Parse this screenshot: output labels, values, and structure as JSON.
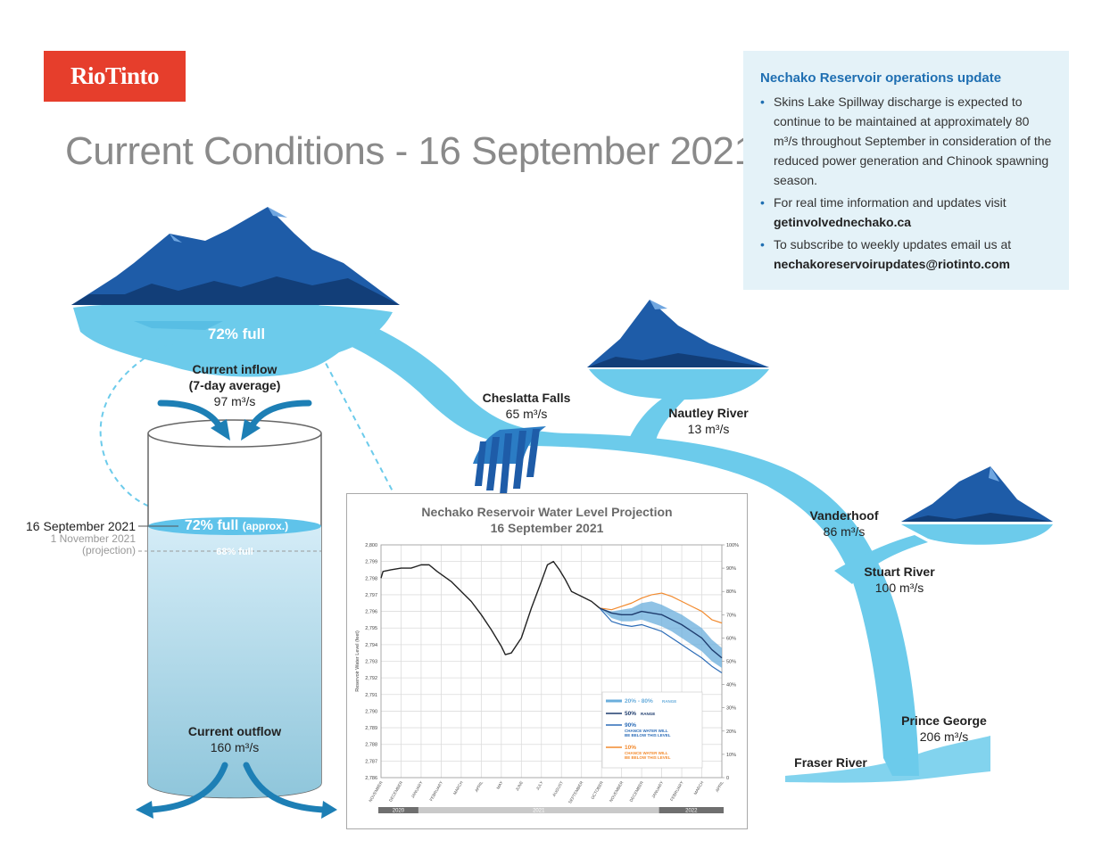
{
  "logo": "RioTinto",
  "title": "Current Conditions - 16 September 2021",
  "info": {
    "heading": "Nechako Reservoir operations update",
    "b1": "Skins Lake Spillway discharge is expected to continue to be maintained at approximately 80 m³/s throughout September in consideration of the reduced power generation and Chinook spawning season.",
    "b2_text": "For real time information and updates visit",
    "b2_link": "getinvolvednechako.ca",
    "b3_text": "To subscribe to weekly updates email us at",
    "b3_link": "nechakoreservoirupdates@riotinto.com"
  },
  "reservoir": {
    "pct": "72% full",
    "inflow_label": "Current inflow",
    "inflow_avg": "(7-day average)",
    "inflow_val": "97 m³/s",
    "outflow_label": "Current outflow",
    "outflow_val": "160 m³/s",
    "level_pct": "72% full",
    "level_approx": "(approx.)",
    "proj_pct": "68% full",
    "date": "16 September 2021",
    "proj_date": "1 November 2021",
    "proj_note": "(projection)"
  },
  "rivers": {
    "cheslatta_name": "Cheslatta Falls",
    "cheslatta_val": "65 m³/s",
    "nautley_name": "Nautley River",
    "nautley_val": "13 m³/s",
    "vanderhoof_name": "Vanderhoof",
    "vanderhoof_val": "86 m³/s",
    "stuart_name": "Stuart River",
    "stuart_val": "100 m³/s",
    "pg_name": "Prince George",
    "pg_val": "206 m³/s",
    "fraser_name": "Fraser River"
  },
  "colors": {
    "brand_red": "#e63e2c",
    "river": "#6ccbeb",
    "mountain": "#1e5ca8",
    "mountain_dark": "#123e78",
    "line_50": "#1f3d6e",
    "line_90": "#2d6db8",
    "line_10": "#f28a2e",
    "band": "#6aaedc"
  },
  "chart_data": {
    "type": "line",
    "title": "Nechako Reservoir Water Level Projection",
    "subtitle": "16 September 2021",
    "ylabel": "Reservoir Water Level (feet)",
    "ylim": [
      2786,
      2800
    ],
    "yticks": [
      "2,800",
      "2,799",
      "2,798",
      "2,797",
      "2,796",
      "2,795",
      "2,794",
      "2,793",
      "2,792",
      "2,791",
      "2,790",
      "2,789",
      "2,788",
      "2,787",
      "2,786"
    ],
    "y2ticks": [
      "100%",
      "90%",
      "80%",
      "70%",
      "60%",
      "50%",
      "40%",
      "30%",
      "20%",
      "10%",
      "0"
    ],
    "months": [
      "NOVEMBER",
      "DECEMBER",
      "JANUARY",
      "FEBRUARY",
      "MARCH",
      "APRIL",
      "MAY",
      "JUNE",
      "JULY",
      "AUGUST",
      "SEPTEMBER",
      "OCTOBER",
      "NOVEMBER",
      "DECEMBER",
      "JANUARY",
      "FEBRUARY",
      "MARCH",
      "APRIL"
    ],
    "years": [
      {
        "label": "2020",
        "from": 0,
        "to": 2
      },
      {
        "label": "2021",
        "from": 2,
        "to": 14
      },
      {
        "label": "2022",
        "from": 14,
        "to": 18
      }
    ],
    "historical": [
      [
        0,
        2798.0
      ],
      [
        0.1,
        2798.4
      ],
      [
        0.5,
        2798.5
      ],
      [
        1,
        2798.6
      ],
      [
        1.5,
        2798.6
      ],
      [
        2,
        2798.8
      ],
      [
        2.4,
        2798.8
      ],
      [
        2.8,
        2798.4
      ],
      [
        3.5,
        2797.8
      ],
      [
        4.5,
        2796.6
      ],
      [
        5,
        2795.8
      ],
      [
        5.5,
        2794.9
      ],
      [
        6,
        2793.9
      ],
      [
        6.2,
        2793.4
      ],
      [
        6.5,
        2793.5
      ],
      [
        7,
        2794.4
      ],
      [
        7.5,
        2796.2
      ],
      [
        8,
        2797.8
      ],
      [
        8.3,
        2798.8
      ],
      [
        8.6,
        2799.0
      ],
      [
        8.9,
        2798.5
      ],
      [
        9.2,
        2797.9
      ],
      [
        9.5,
        2797.2
      ],
      [
        10,
        2796.9
      ],
      [
        10.5,
        2796.6
      ],
      [
        10.9,
        2796.2
      ]
    ],
    "p10": [
      [
        10.9,
        2796.2
      ],
      [
        11.5,
        2796.1
      ],
      [
        12,
        2796.3
      ],
      [
        12.5,
        2796.5
      ],
      [
        13,
        2796.8
      ],
      [
        13.5,
        2797.0
      ],
      [
        14,
        2797.1
      ],
      [
        14.5,
        2796.9
      ],
      [
        15,
        2796.6
      ],
      [
        15.5,
        2796.3
      ],
      [
        16,
        2796.0
      ],
      [
        16.5,
        2795.5
      ],
      [
        17,
        2795.3
      ]
    ],
    "p50": [
      [
        10.9,
        2796.2
      ],
      [
        11.5,
        2795.9
      ],
      [
        12,
        2795.8
      ],
      [
        12.5,
        2795.8
      ],
      [
        13,
        2796.0
      ],
      [
        13.5,
        2795.9
      ],
      [
        14,
        2795.8
      ],
      [
        14.5,
        2795.5
      ],
      [
        15,
        2795.2
      ],
      [
        15.5,
        2794.8
      ],
      [
        16,
        2794.4
      ],
      [
        16.5,
        2793.7
      ],
      [
        17,
        2793.2
      ]
    ],
    "p90": [
      [
        10.9,
        2796.2
      ],
      [
        11.5,
        2795.4
      ],
      [
        12,
        2795.2
      ],
      [
        12.5,
        2795.1
      ],
      [
        13,
        2795.2
      ],
      [
        13.5,
        2795.0
      ],
      [
        14,
        2794.8
      ],
      [
        14.5,
        2794.4
      ],
      [
        15,
        2794.0
      ],
      [
        15.5,
        2793.6
      ],
      [
        16,
        2793.2
      ],
      [
        16.5,
        2792.7
      ],
      [
        17,
        2792.3
      ]
    ],
    "band_upper": [
      [
        10.9,
        2796.2
      ],
      [
        11.5,
        2796.0
      ],
      [
        12,
        2796.1
      ],
      [
        12.5,
        2796.2
      ],
      [
        13,
        2796.5
      ],
      [
        13.5,
        2796.6
      ],
      [
        14,
        2796.4
      ],
      [
        14.5,
        2796.1
      ],
      [
        15,
        2795.8
      ],
      [
        15.5,
        2795.4
      ],
      [
        16,
        2795.0
      ],
      [
        16.5,
        2794.3
      ],
      [
        17,
        2793.8
      ]
    ],
    "band_lower": [
      [
        10.9,
        2796.2
      ],
      [
        11.5,
        2795.6
      ],
      [
        12,
        2795.4
      ],
      [
        12.5,
        2795.4
      ],
      [
        13,
        2795.5
      ],
      [
        13.5,
        2795.3
      ],
      [
        14,
        2795.1
      ],
      [
        14.5,
        2794.8
      ],
      [
        15,
        2794.4
      ],
      [
        15.5,
        2794.0
      ],
      [
        16,
        2793.6
      ],
      [
        16.5,
        2793.0
      ],
      [
        17,
        2792.6
      ]
    ],
    "legend": [
      {
        "key": "band",
        "label": "20% - 80%",
        "small": "RANGE"
      },
      {
        "key": "p50",
        "label": "50%",
        "small": "RANGE"
      },
      {
        "key": "p90",
        "label": "90%",
        "small": "CHANCE WATER WILL BE BELOW THIS LEVEL"
      },
      {
        "key": "p10",
        "label": "10%",
        "small": "CHANCE WATER WILL BE BELOW THIS LEVEL"
      }
    ]
  }
}
